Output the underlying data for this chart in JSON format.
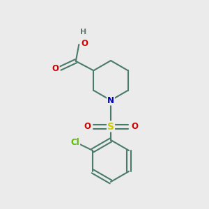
{
  "background_color": "#ebebeb",
  "bond_color": "#4a7a6a",
  "bond_width": 1.5,
  "atom_colors": {
    "C": "#4a7a6a",
    "N": "#0000cc",
    "O": "#cc0000",
    "S": "#cccc00",
    "Cl": "#55bb00",
    "H": "#607a70"
  },
  "figsize": [
    3.0,
    3.0
  ],
  "dpi": 100,
  "xlim": [
    0,
    10
  ],
  "ylim": [
    0,
    10
  ]
}
